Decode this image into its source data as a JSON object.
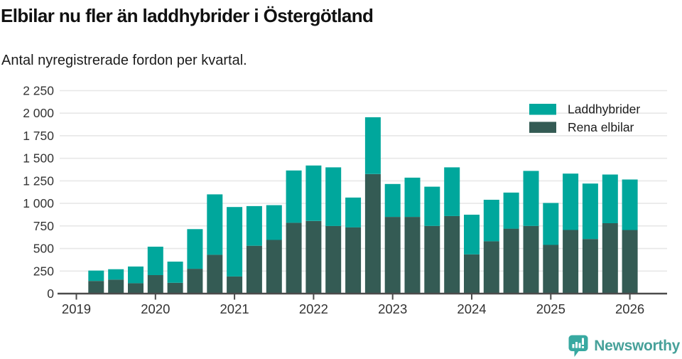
{
  "header": {
    "title": "Elbilar nu fler än laddhybrider i Östergötland",
    "subtitle": "Antal nyregistrerade fordon per kvartal."
  },
  "chart_data": {
    "type": "bar",
    "stacked": true,
    "x": [
      "2019 K2",
      "2019 K3",
      "2019 K4",
      "2020 K1",
      "2020 K2",
      "2020 K3",
      "2020 K4",
      "2021 K1",
      "2021 K2",
      "2021 K3",
      "2021 K4",
      "2022 K1",
      "2022 K2",
      "2022 K3",
      "2022 K4",
      "2023 K1",
      "2023 K2",
      "2023 K3",
      "2023 K4",
      "2024 K1",
      "2024 K2",
      "2024 K3",
      "2024 K4",
      "2025 K1",
      "2025 K2",
      "2025 K3",
      "2025 K4",
      "2026 K1"
    ],
    "series": [
      {
        "name": "Rena elbilar",
        "color": "#345b54",
        "values": [
          140,
          155,
          115,
          205,
          120,
          275,
          430,
          190,
          530,
          595,
          785,
          805,
          750,
          735,
          1325,
          850,
          850,
          750,
          860,
          435,
          580,
          720,
          750,
          540,
          705,
          605,
          780,
          705
        ]
      },
      {
        "name": "Laddhybrider",
        "color": "#00a79c",
        "values": [
          115,
          115,
          185,
          315,
          235,
          440,
          670,
          770,
          440,
          385,
          580,
          615,
          650,
          330,
          630,
          365,
          435,
          435,
          540,
          440,
          460,
          400,
          610,
          465,
          625,
          615,
          540,
          560
        ]
      }
    ],
    "legend": [
      {
        "label": "Laddhybrider",
        "color": "#00a79c"
      },
      {
        "label": "Rena elbilar",
        "color": "#345b54"
      }
    ],
    "xticks": [
      "2019",
      "2020",
      "2021",
      "2022",
      "2023",
      "2024",
      "2025",
      "2026"
    ],
    "ytick_values": [
      0,
      250,
      500,
      750,
      1000,
      1250,
      1500,
      1750,
      2000,
      2250
    ],
    "ytick_labels": [
      "0",
      "250",
      "500",
      "750",
      "1 000",
      "1 250",
      "1 500",
      "1 750",
      "2 000",
      "2 250"
    ],
    "ylim": [
      0,
      2250
    ],
    "grid": "horizontal",
    "legend_position": "top-right"
  },
  "footer": {
    "brand": "Newsworthy",
    "brand_color": "#47a19a",
    "logo_icon": "bar-chart-speech-bubble"
  }
}
